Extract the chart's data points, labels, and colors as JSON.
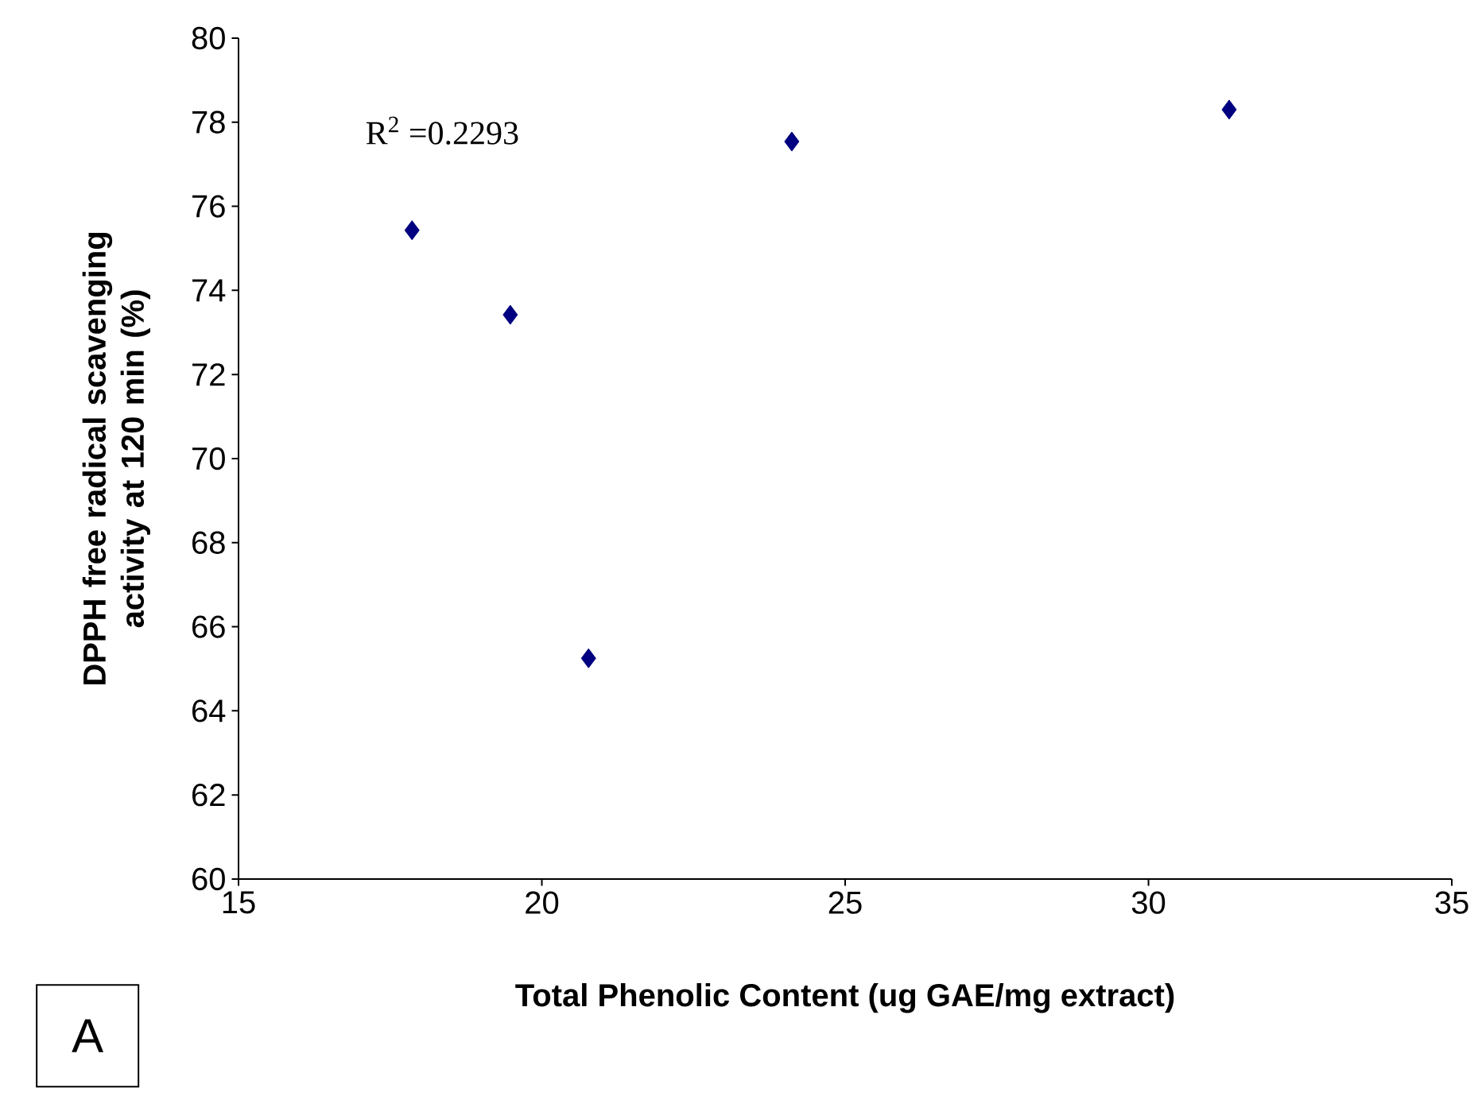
{
  "chart_data": {
    "type": "scatter",
    "xlabel": "Total Phenolic Content (ug GAE/mg extract)",
    "ylabel": "DPPH free radical scavenging activity at 120 min (%)",
    "x": [
      17.86,
      19.48,
      20.77,
      24.12,
      31.33
    ],
    "series": [
      {
        "color": "#000080",
        "values": [
          75.43,
          73.42,
          65.25,
          77.54,
          78.3
        ]
      }
    ],
    "marker": "diamond",
    "xlim": [
      15,
      35
    ],
    "xticks": [
      15,
      20,
      25,
      30,
      35
    ],
    "ylim": [
      60,
      80
    ],
    "yticks": [
      60,
      62,
      64,
      66,
      68,
      70,
      72,
      74,
      76,
      78,
      80
    ],
    "annotations": [
      "R$^{2}$ =0.2293",
      "A"
    ]
  }
}
